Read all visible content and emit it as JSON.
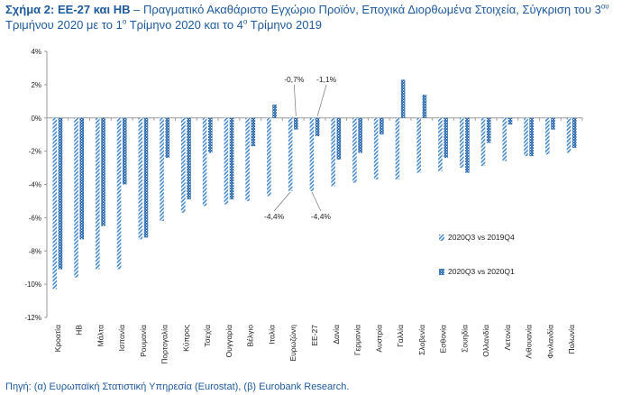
{
  "title": {
    "label": "Σχήμα 2: ΕΕ-27 και ΗΒ",
    "text_a": " – Πραγματικό Ακαθάριστο Εγχώριο Προϊόν, Εποχικά Διορθωμένα Στοιχεία, Σύγκριση του 3",
    "sup_a": "ου",
    "text_b": " Τριμήνου 2020 με το 1",
    "sup_b": "ο",
    "text_c": " Τρίμηνο 2020 και το 4",
    "sup_c": "ο",
    "text_d": " Τρίμηνο 2019"
  },
  "source": "Πηγή: (α) Ευρωπαϊκή Στατιστική Υπηρεσία (Eurostat), (β) Eurobank Research.",
  "chart_data": {
    "type": "bar",
    "categories": [
      "Κροατία",
      "ΗΒ",
      "Μάλτα",
      "Ισπανία",
      "Ρουμανία",
      "Πορτογαλία",
      "Κύπρος",
      "Τσεχία",
      "Ουγγαρία",
      "Βέλγιο",
      "Ιταλία",
      "Ευρωζώνη",
      "ΕΕ-27",
      "Δανία",
      "Γερμανία",
      "Αυστρία",
      "Γαλλία",
      "Σλοβενία",
      "Εσθονία",
      "Σουηδία",
      "Ολλανδία",
      "Λετονία",
      "Λιθουανία",
      "Φινλανδία",
      "Πολωνία"
    ],
    "series": [
      {
        "name": "2020Q3 vs 2019Q4",
        "color": "#4a8ac8",
        "values": [
          -10.3,
          -9.6,
          -9.1,
          -9.1,
          -7.3,
          -6.2,
          -5.7,
          -5.3,
          -5.2,
          -5.0,
          -4.7,
          -4.4,
          -4.4,
          -4.1,
          -3.9,
          -3.7,
          -3.7,
          -3.3,
          -3.2,
          -3.0,
          -2.9,
          -2.6,
          -2.3,
          -2.2,
          -2.1
        ]
      },
      {
        "name": "2020Q3 vs 2020Q1",
        "color": "#1c5fa8",
        "values": [
          -9.1,
          -7.3,
          -6.5,
          -4.0,
          -7.2,
          -2.4,
          -4.9,
          -2.1,
          -4.9,
          -1.7,
          0.8,
          -0.7,
          -1.1,
          -2.5,
          -2.1,
          -1.0,
          2.3,
          1.4,
          -2.4,
          -3.3,
          -1.5,
          -0.4,
          -2.3,
          -0.7,
          -1.8
        ]
      }
    ],
    "ylim": [
      -12,
      4
    ],
    "yticks": [
      "4%",
      "2%",
      "0%",
      "-2%",
      "-4%",
      "-6%",
      "-8%",
      "-10%",
      "-12%"
    ],
    "ytick_values": [
      4,
      2,
      0,
      -2,
      -4,
      -6,
      -8,
      -10,
      -12
    ],
    "annotations": [
      {
        "text": "-0,7%",
        "category": "Ευρωζώνη",
        "series": 1
      },
      {
        "text": "-1,1%",
        "category": "ΕΕ-27",
        "series": 1
      },
      {
        "text": "-4,4%",
        "category": "Ευρωζώνη",
        "series": 0
      },
      {
        "text": "-4,4%",
        "category": "ΕΕ-27",
        "series": 0
      }
    ],
    "legend_position": "right",
    "grid": false
  }
}
